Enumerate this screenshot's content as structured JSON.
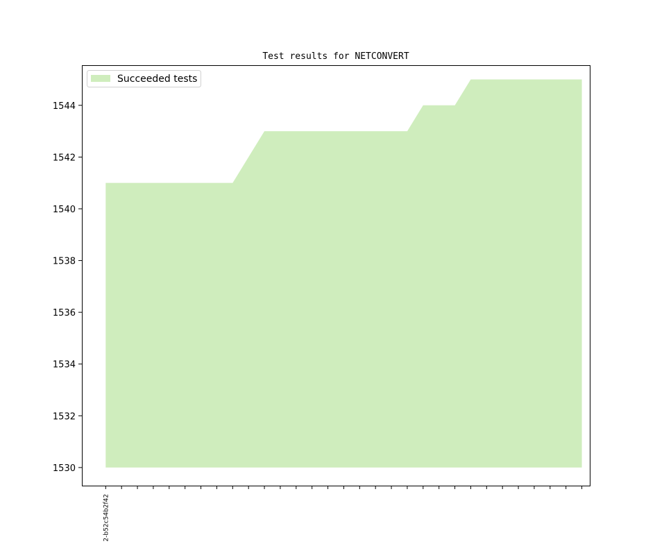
{
  "chart_data": {
    "type": "area",
    "title": "Test results for NETCONVERT",
    "xlabel": "",
    "ylabel": "",
    "ylim": [
      1529.3,
      1545.55
    ],
    "xlim": [
      -1.5,
      30.5
    ],
    "yticks": [
      1530,
      1532,
      1534,
      1536,
      1538,
      1540,
      1542,
      1544
    ],
    "x_tick_count": 31,
    "x_tick_labels": [
      {
        "index": 0,
        "label": "2-b52c54b2f42"
      }
    ],
    "baseline": 1530,
    "grid": false,
    "legend": {
      "position": "top-left",
      "entries": [
        "Succeeded tests"
      ]
    },
    "series": [
      {
        "name": "Succeeded tests",
        "color": "#cfedbd",
        "values": [
          1541,
          1541,
          1541,
          1541,
          1541,
          1541,
          1541,
          1541,
          1541,
          1542,
          1543,
          1543,
          1543,
          1543,
          1543,
          1543,
          1543,
          1543,
          1543,
          1543,
          1544,
          1544,
          1544,
          1545,
          1545,
          1545,
          1545,
          1545,
          1545,
          1545,
          1545
        ]
      }
    ]
  }
}
